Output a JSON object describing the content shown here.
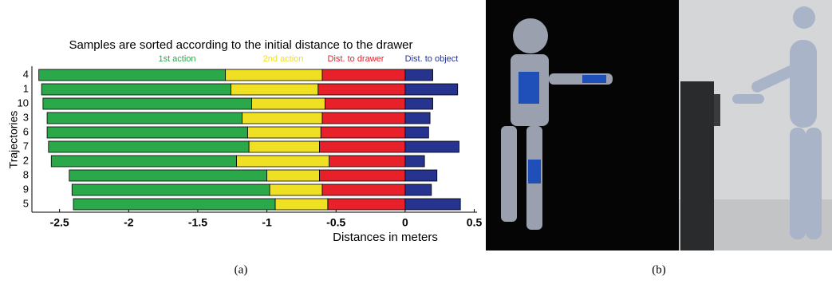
{
  "chart_data": {
    "type": "stacked-hbar",
    "title": "Samples are sorted according to the initial distance to the drawer",
    "xlabel": "Distances in meters",
    "ylabel": "Trajectories",
    "categories": [
      "4",
      "1",
      "10",
      "3",
      "6",
      "7",
      "2",
      "8",
      "9",
      "5"
    ],
    "series": [
      {
        "name": "1st action",
        "color": "#2aa84a",
        "values": [
          -1.35,
          -1.37,
          -1.51,
          -1.41,
          -1.45,
          -1.45,
          -1.34,
          -1.43,
          -1.43,
          -1.46
        ]
      },
      {
        "name": "2nd action",
        "color": "#efe023",
        "values": [
          -0.7,
          -0.63,
          -0.53,
          -0.58,
          -0.53,
          -0.51,
          -0.67,
          -0.38,
          -0.38,
          -0.38
        ]
      },
      {
        "name": "Dist. to drawer",
        "color": "#e8202a",
        "values": [
          -0.6,
          -0.63,
          -0.58,
          -0.6,
          -0.61,
          -0.62,
          -0.55,
          -0.62,
          -0.6,
          -0.56
        ]
      },
      {
        "name": "Dist. to object",
        "color": "#26338f",
        "values": [
          0.2,
          0.38,
          0.2,
          0.18,
          0.17,
          0.39,
          0.14,
          0.23,
          0.19,
          0.4
        ]
      }
    ],
    "xlim": [
      -2.7,
      0.52
    ],
    "xticks": [
      -2.5,
      -2,
      -1.5,
      -1,
      -0.5,
      0,
      0.5
    ]
  },
  "figure": {
    "captions": [
      "(a)",
      "(b)"
    ]
  }
}
